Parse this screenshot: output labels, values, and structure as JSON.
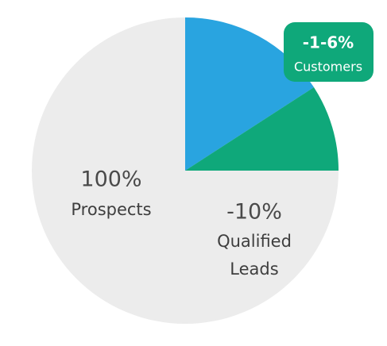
{
  "stages": [
    {
      "figure": "100%",
      "label": [
        "Prospects"
      ]
    },
    {
      "figure": "-10%",
      "label": [
        "Qualified",
        "Leads"
      ]
    },
    {
      "figure": "-1-6%",
      "label": [
        "Customers"
      ]
    }
  ]
}
